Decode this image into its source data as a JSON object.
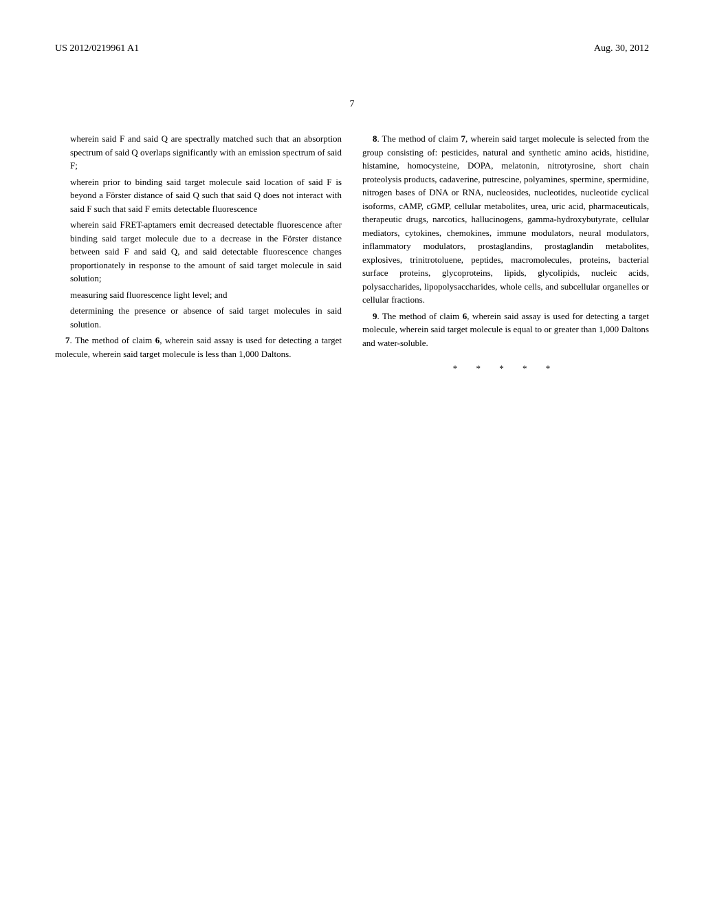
{
  "header": {
    "pubNumber": "US 2012/0219961 A1",
    "pubDate": "Aug. 30, 2012"
  },
  "pageNumber": "7",
  "leftColumn": {
    "p1": "wherein said F and said Q are spectrally matched such that an absorption spectrum of said Q overlaps significantly with an emission spectrum of said F;",
    "p2": "wherein prior to binding said target molecule said location of said F is beyond a Förster distance of said Q such that said Q does not interact with said F such that said F emits detectable fluorescence",
    "p3": "wherein said FRET-aptamers emit decreased detectable fluorescence after binding said target molecule due to a decrease in the Förster distance between said F and said Q, and said detectable fluorescence changes proportionately in response to the amount of said target molecule in said solution;",
    "p4": "measuring said fluorescence light level; and",
    "p5": "determining the presence or absence of said target molecules in said solution.",
    "claim7_num": "7",
    "claim7_ref": "6",
    "claim7_text_a": ". The method of claim ",
    "claim7_text_b": ", wherein said assay is used for detecting a target molecule, wherein said target molecule is less than 1,000 Daltons."
  },
  "rightColumn": {
    "claim8_num": "8",
    "claim8_ref": "7",
    "claim8_text_a": ". The method of claim ",
    "claim8_text_b": ", wherein said target molecule is selected from the group consisting of: pesticides, natural and synthetic amino acids, histidine, histamine, homocysteine, DOPA, melatonin, nitrotyrosine, short chain proteolysis products, cadaverine, putrescine, polyamines, spermine, spermidine, nitrogen bases of DNA or RNA, nucleosides, nucleotides, nucleotide cyclical isoforms, cAMP, cGMP, cellular metabolites, urea, uric acid, pharmaceuticals, therapeutic drugs, narcotics, hallucinogens, gamma-hydroxybutyrate, cellular mediators, cytokines, chemokines, immune modulators, neural modulators, inflammatory modulators, prostaglandins, prostaglandin metabolites, explosives, trinitrotoluene, peptides, macromolecules, proteins, bacterial surface proteins, glycoproteins, lipids, glycolipids, nucleic acids, polysaccharides, lipopolysaccharides, whole cells, and subcellular organelles or cellular fractions.",
    "claim9_num": "9",
    "claim9_ref": "6",
    "claim9_text_a": ". The method of claim ",
    "claim9_text_b": ", wherein said assay is used for detecting a target molecule, wherein said target molecule is equal to or greater than 1,000 Daltons and water-soluble."
  },
  "separator": "* * * * *"
}
